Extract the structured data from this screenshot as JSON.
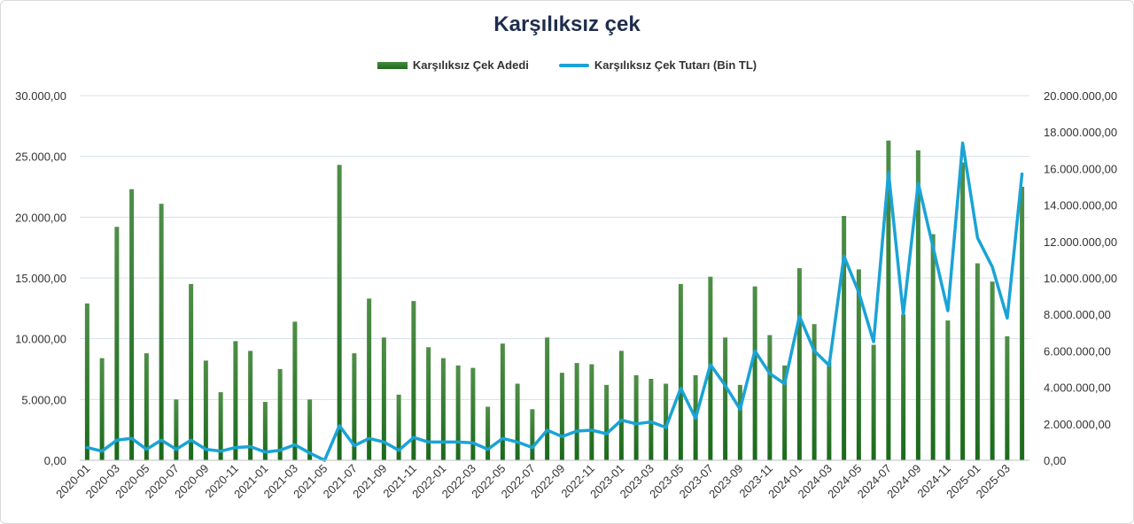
{
  "title": "Karşılıksız çek",
  "colors": {
    "bar": "#2e7d2e",
    "line": "#1aa3d6"
  },
  "chart_data": {
    "type": "bar",
    "title": "Karşılıksız çek",
    "categories": [
      "2020-01",
      "2020-02",
      "2020-03",
      "2020-04",
      "2020-05",
      "2020-06",
      "2020-07",
      "2020-08",
      "2020-09",
      "2020-10",
      "2020-11",
      "2020-12",
      "2021-01",
      "2021-02",
      "2021-03",
      "2021-04",
      "2021-05",
      "2021-06",
      "2021-07",
      "2021-08",
      "2021-09",
      "2021-10",
      "2021-11",
      "2021-12",
      "2022-01",
      "2022-02",
      "2022-03",
      "2022-04",
      "2022-05",
      "2022-06",
      "2022-07",
      "2022-08",
      "2022-09",
      "2022-10",
      "2022-11",
      "2022-12",
      "2023-01",
      "2023-02",
      "2023-03",
      "2023-04",
      "2023-05",
      "2023-06",
      "2023-07",
      "2023-08",
      "2023-09",
      "2023-10",
      "2023-11",
      "2023-12",
      "2024-01",
      "2024-02",
      "2024-03",
      "2024-04",
      "2024-05",
      "2024-06",
      "2024-07",
      "2024-08",
      "2024-09",
      "2024-10",
      "2024-11",
      "2024-12",
      "2025-01",
      "2025-02",
      "2025-03",
      "2025-04"
    ],
    "x_tick_labels": [
      "2020-01",
      "2020-03",
      "2020-05",
      "2020-07",
      "2020-09",
      "2020-11",
      "2021-01",
      "2021-03",
      "2021-05",
      "2021-07",
      "2021-09",
      "2021-11",
      "2022-01",
      "2022-03",
      "2022-05",
      "2022-07",
      "2022-09",
      "2022-11",
      "2023-01",
      "2023-03",
      "2023-05",
      "2023-07",
      "2023-09",
      "2023-11",
      "2024-01",
      "2024-03",
      "2024-05",
      "2024-07",
      "2024-09",
      "2024-11",
      "2025-01",
      "2025-03"
    ],
    "series": [
      {
        "name": "Karşılıksız Çek Adedi",
        "type": "bar",
        "axis": "left",
        "values": [
          12900,
          8400,
          19200,
          22300,
          8800,
          21100,
          5000,
          14500,
          8200,
          5600,
          9800,
          9000,
          4800,
          7500,
          11400,
          5000,
          0,
          24300,
          8800,
          13300,
          10100,
          5400,
          13100,
          9300,
          8400,
          7800,
          7600,
          4400,
          9600,
          6300,
          4200,
          10100,
          7200,
          8000,
          7900,
          6200,
          9000,
          7000,
          6700,
          6300,
          14500,
          7000,
          15100,
          10100,
          6200,
          14300,
          10300,
          7800,
          15800,
          11200,
          8100,
          20100,
          15700,
          9500,
          26300,
          12000,
          25500,
          18600,
          11500,
          24500,
          16200,
          14700,
          10200,
          22500
        ]
      },
      {
        "name": "Karşılıksız Çek Tutarı (Bin TL)",
        "type": "line",
        "axis": "right",
        "values": [
          700000,
          500000,
          1100000,
          1200000,
          600000,
          1100000,
          600000,
          1100000,
          600000,
          500000,
          700000,
          750000,
          450000,
          550000,
          850000,
          400000,
          0,
          1900000,
          800000,
          1200000,
          1000000,
          550000,
          1250000,
          1000000,
          1000000,
          1000000,
          950000,
          600000,
          1200000,
          1000000,
          700000,
          1650000,
          1300000,
          1600000,
          1650000,
          1450000,
          2200000,
          2000000,
          2100000,
          1800000,
          3950000,
          2300000,
          5250000,
          4100000,
          2800000,
          6000000,
          4750000,
          4200000,
          7900000,
          6000000,
          5200000,
          11200000,
          9200000,
          6500000,
          15800000,
          8000000,
          15200000,
          11700000,
          8200000,
          17400000,
          12200000,
          10600000,
          7800000,
          15700000
        ]
      }
    ],
    "y_left": {
      "min": 0,
      "max": 30000,
      "ticks": [
        "0,00",
        "5.000,00",
        "10.000,00",
        "15.000,00",
        "20.000,00",
        "25.000,00",
        "30.000,00"
      ]
    },
    "y_right": {
      "min": 0,
      "max": 20000000,
      "ticks": [
        "0,00",
        "2.000.000,00",
        "4.000.000,00",
        "6.000.000,00",
        "8.000.000,00",
        "10.000.000,00",
        "12.000.000,00",
        "14.000.000,00",
        "16.000.000,00",
        "18.000.000,00",
        "20.000.000,00"
      ]
    },
    "grid": true,
    "legend_position": "top"
  }
}
